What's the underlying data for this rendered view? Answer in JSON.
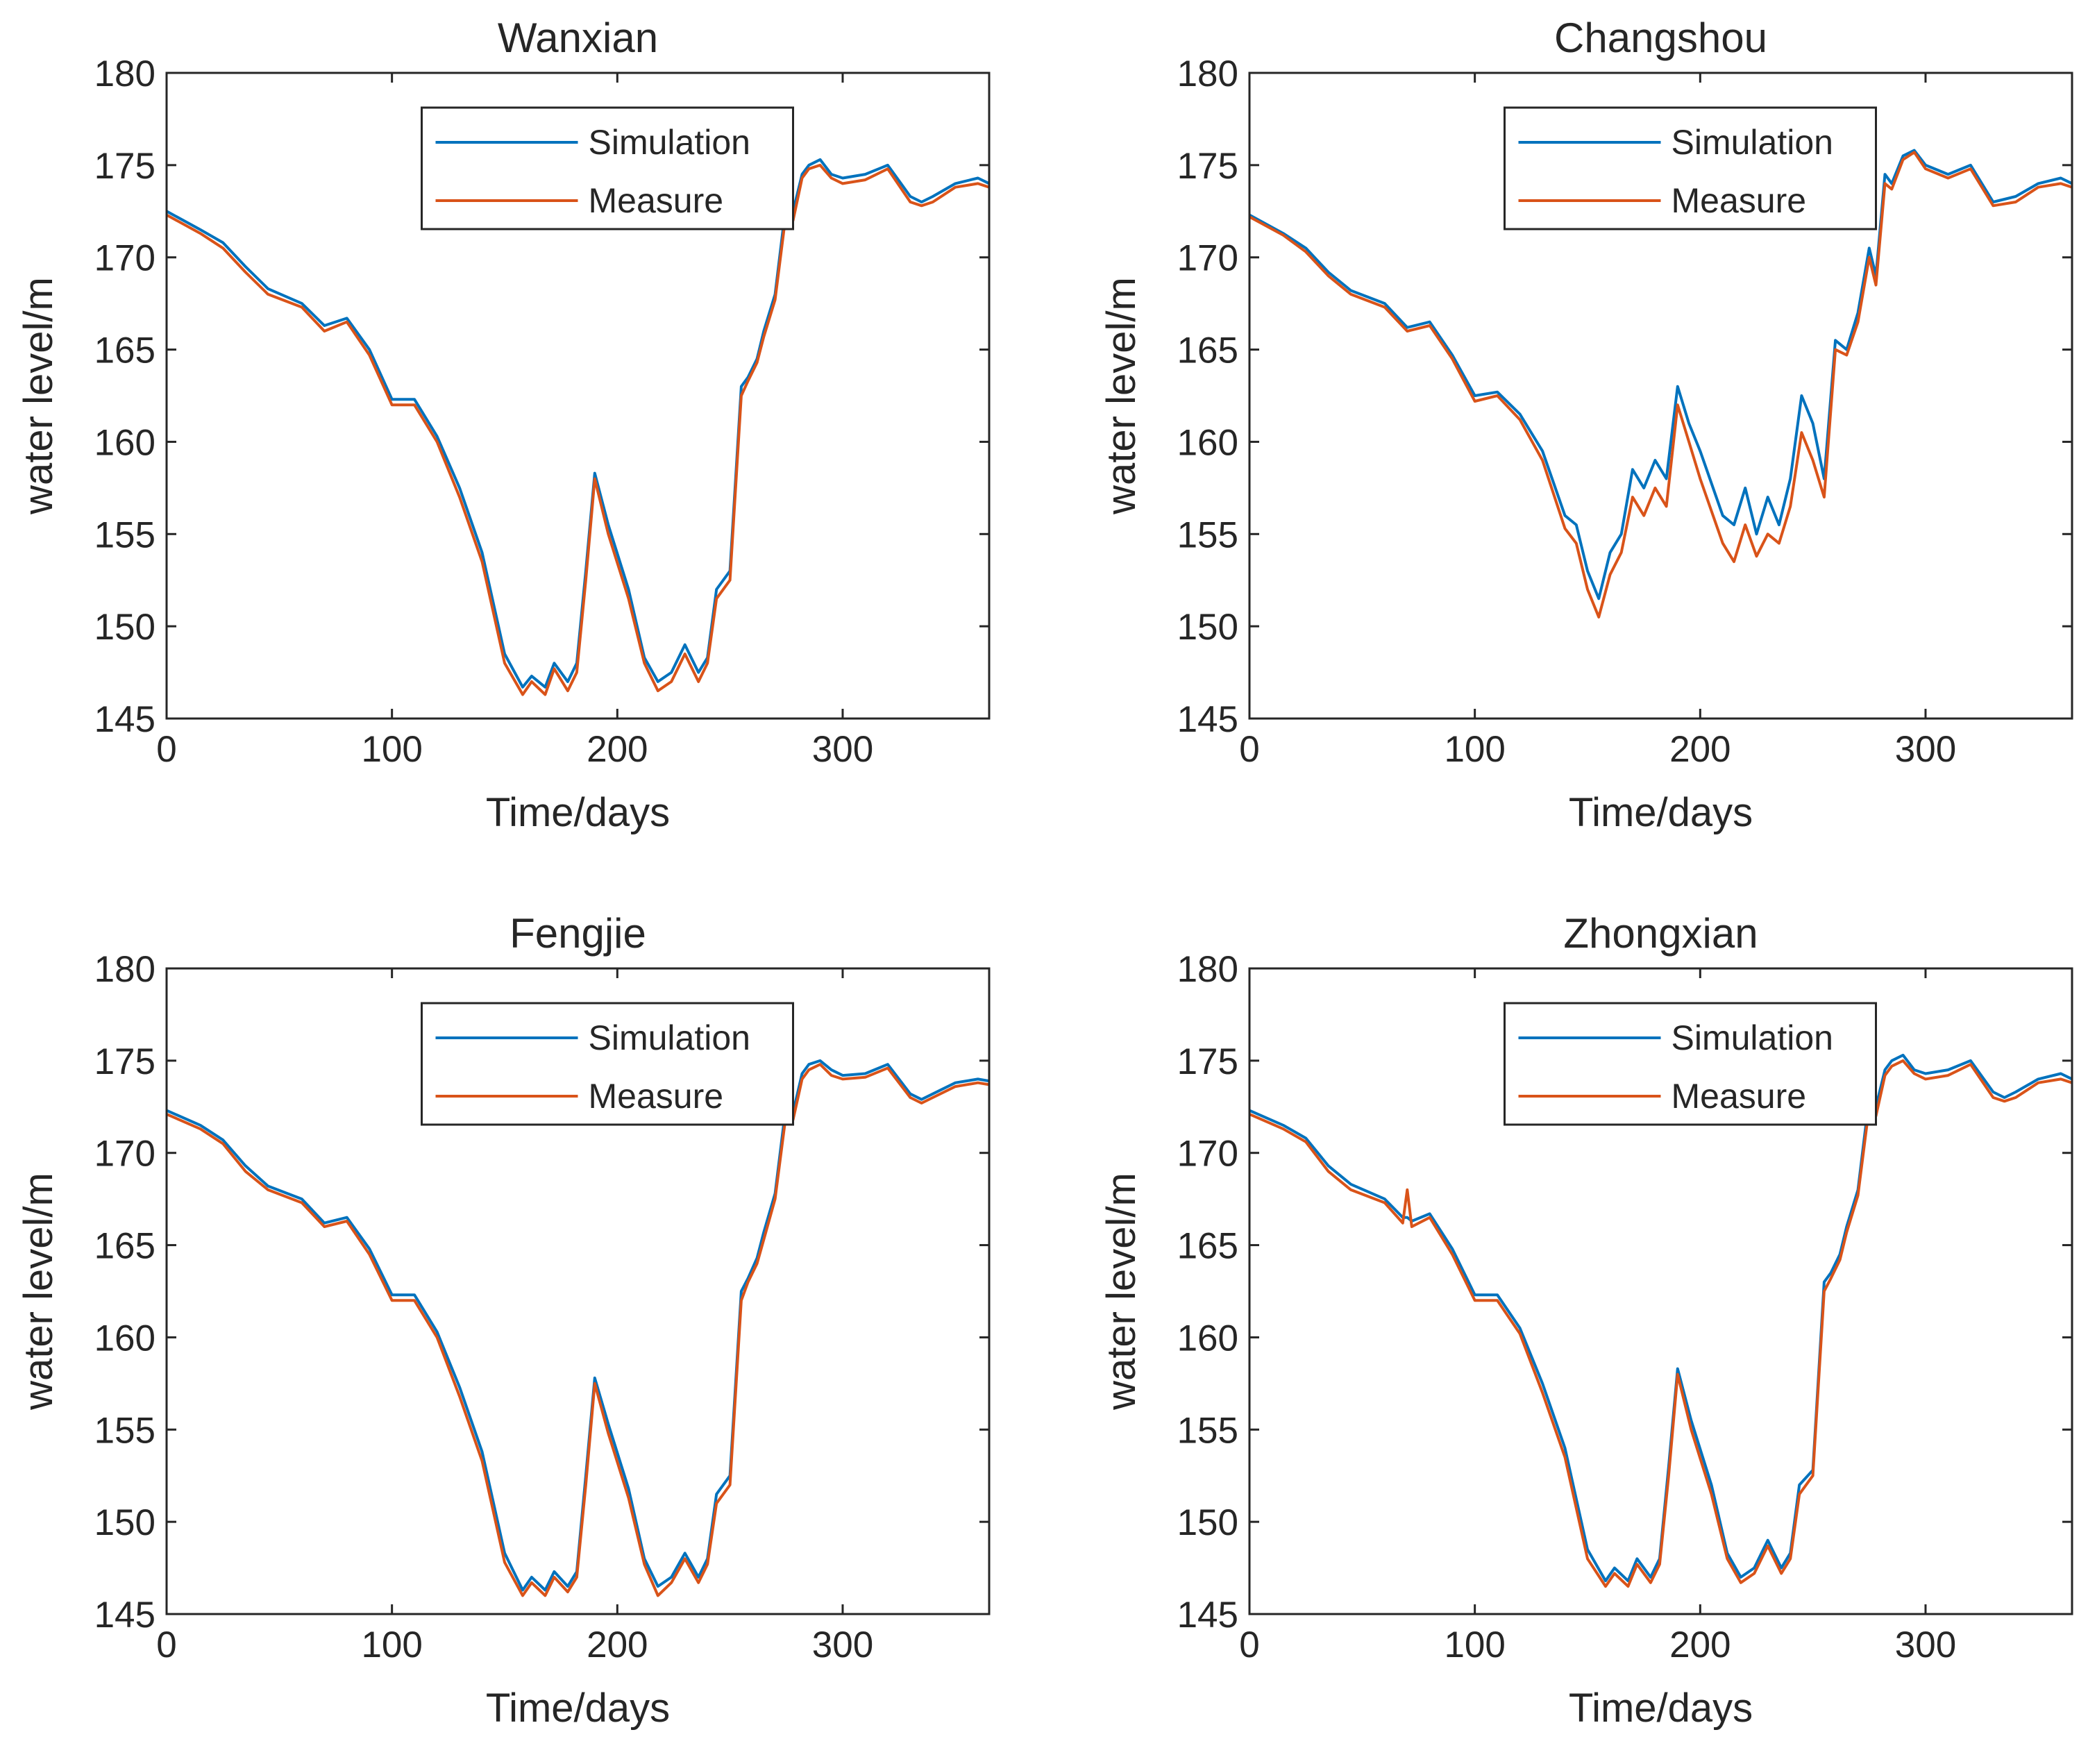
{
  "figure": {
    "colors": {
      "simulation": "#0072BD",
      "measure": "#D95319",
      "axis": "#262626",
      "background": "#ffffff"
    }
  },
  "chart_data": [
    {
      "type": "line",
      "title": "Wanxian",
      "xlabel": "Time/days",
      "ylabel": "water level/m",
      "xlim": [
        0,
        365
      ],
      "ylim": [
        145,
        180
      ],
      "xticks": [
        0,
        100,
        200,
        300
      ],
      "yticks": [
        145,
        150,
        155,
        160,
        165,
        170,
        175,
        180
      ],
      "legend": {
        "position": "top-center",
        "entries": [
          "Simulation",
          "Measure"
        ]
      },
      "series": [
        {
          "name": "Simulation",
          "color": "#0072BD",
          "x": [
            0,
            15,
            25,
            35,
            45,
            60,
            70,
            80,
            90,
            100,
            110,
            120,
            130,
            140,
            150,
            158,
            162,
            168,
            172,
            178,
            182,
            186,
            190,
            196,
            205,
            212,
            218,
            224,
            230,
            236,
            240,
            244,
            250,
            255,
            258,
            262,
            265,
            270,
            275,
            278,
            282,
            285,
            290,
            295,
            300,
            310,
            320,
            330,
            335,
            340,
            350,
            360,
            365
          ],
          "y": [
            172.5,
            171.5,
            170.8,
            169.5,
            168.3,
            167.5,
            166.3,
            166.7,
            165.0,
            162.3,
            162.3,
            160.3,
            157.5,
            154.0,
            148.5,
            146.7,
            147.3,
            146.7,
            148.0,
            147.0,
            148.0,
            153.0,
            158.3,
            155.5,
            152.0,
            148.3,
            147.0,
            147.5,
            149.0,
            147.5,
            148.3,
            152.0,
            153.0,
            163.0,
            163.5,
            164.5,
            166.0,
            168.0,
            173.0,
            172.5,
            174.5,
            175.0,
            175.3,
            174.5,
            174.3,
            174.5,
            175.0,
            173.3,
            173.0,
            173.3,
            174.0,
            174.3,
            174.0
          ]
        },
        {
          "name": "Measure",
          "color": "#D95319",
          "x": [
            0,
            15,
            25,
            35,
            45,
            60,
            70,
            80,
            90,
            100,
            110,
            120,
            130,
            140,
            150,
            158,
            162,
            168,
            172,
            178,
            182,
            186,
            190,
            196,
            205,
            212,
            218,
            224,
            230,
            236,
            240,
            244,
            250,
            255,
            258,
            262,
            265,
            270,
            275,
            278,
            282,
            285,
            290,
            295,
            300,
            310,
            320,
            330,
            335,
            340,
            350,
            360,
            365
          ],
          "y": [
            172.3,
            171.3,
            170.5,
            169.2,
            168.0,
            167.3,
            166.0,
            166.5,
            164.7,
            162.0,
            162.0,
            160.0,
            157.0,
            153.5,
            148.0,
            146.3,
            147.0,
            146.3,
            147.7,
            146.5,
            147.5,
            152.5,
            158.0,
            155.0,
            151.5,
            148.0,
            146.5,
            147.0,
            148.5,
            147.0,
            148.0,
            151.5,
            152.5,
            162.5,
            163.3,
            164.3,
            165.7,
            167.7,
            172.5,
            172.0,
            174.3,
            174.8,
            175.0,
            174.3,
            174.0,
            174.2,
            174.8,
            173.0,
            172.8,
            173.0,
            173.8,
            174.0,
            173.8
          ]
        }
      ]
    },
    {
      "type": "line",
      "title": "Changshou",
      "xlabel": "Time/days",
      "ylabel": "water level/m",
      "xlim": [
        0,
        365
      ],
      "ylim": [
        145,
        180
      ],
      "xticks": [
        0,
        100,
        200,
        300
      ],
      "yticks": [
        145,
        150,
        155,
        160,
        165,
        170,
        175,
        180
      ],
      "legend": {
        "position": "top-center",
        "entries": [
          "Simulation",
          "Measure"
        ]
      },
      "series": [
        {
          "name": "Simulation",
          "color": "#0072BD",
          "x": [
            0,
            15,
            25,
            35,
            45,
            60,
            70,
            80,
            90,
            100,
            110,
            120,
            130,
            140,
            145,
            150,
            155,
            160,
            165,
            170,
            175,
            180,
            185,
            190,
            195,
            200,
            210,
            215,
            220,
            225,
            230,
            235,
            240,
            245,
            250,
            255,
            260,
            265,
            270,
            275,
            278,
            282,
            285,
            290,
            295,
            300,
            310,
            320,
            330,
            340,
            350,
            360,
            365
          ],
          "y": [
            172.3,
            171.3,
            170.5,
            169.2,
            168.2,
            167.5,
            166.2,
            166.5,
            164.7,
            162.5,
            162.7,
            161.5,
            159.5,
            156.0,
            155.5,
            153.0,
            151.5,
            154.0,
            155.0,
            158.5,
            157.5,
            159.0,
            158.0,
            163.0,
            161.0,
            159.5,
            156.0,
            155.5,
            157.5,
            155.0,
            157.0,
            155.5,
            158.0,
            162.5,
            161.0,
            158.0,
            165.5,
            165.0,
            167.0,
            170.5,
            169.0,
            174.5,
            174.0,
            175.5,
            175.8,
            175.0,
            174.5,
            175.0,
            173.0,
            173.3,
            174.0,
            174.3,
            174.0
          ]
        },
        {
          "name": "Measure",
          "color": "#D95319",
          "x": [
            0,
            15,
            25,
            35,
            45,
            60,
            70,
            80,
            90,
            100,
            110,
            120,
            130,
            140,
            145,
            150,
            155,
            160,
            165,
            170,
            175,
            180,
            185,
            190,
            195,
            200,
            210,
            215,
            220,
            225,
            230,
            235,
            240,
            245,
            250,
            255,
            260,
            265,
            270,
            275,
            278,
            282,
            285,
            290,
            295,
            300,
            310,
            320,
            330,
            340,
            350,
            360,
            365
          ],
          "y": [
            172.2,
            171.2,
            170.3,
            169.0,
            168.0,
            167.3,
            166.0,
            166.3,
            164.5,
            162.2,
            162.5,
            161.2,
            159.0,
            155.3,
            154.5,
            152.0,
            150.5,
            152.8,
            154.0,
            157.0,
            156.0,
            157.5,
            156.5,
            162.0,
            160.0,
            158.0,
            154.5,
            153.5,
            155.5,
            153.8,
            155.0,
            154.5,
            156.5,
            160.5,
            159.0,
            157.0,
            165.0,
            164.7,
            166.5,
            170.0,
            168.5,
            174.0,
            173.7,
            175.3,
            175.7,
            174.8,
            174.3,
            174.8,
            172.8,
            173.0,
            173.8,
            174.0,
            173.8
          ]
        }
      ]
    },
    {
      "type": "line",
      "title": "Fengjie",
      "xlabel": "Time/days",
      "ylabel": "water level/m",
      "xlim": [
        0,
        365
      ],
      "ylim": [
        145,
        180
      ],
      "xticks": [
        0,
        100,
        200,
        300
      ],
      "yticks": [
        145,
        150,
        155,
        160,
        165,
        170,
        175,
        180
      ],
      "legend": {
        "position": "top-center",
        "entries": [
          "Simulation",
          "Measure"
        ]
      },
      "series": [
        {
          "name": "Simulation",
          "color": "#0072BD",
          "x": [
            0,
            15,
            25,
            35,
            45,
            60,
            70,
            80,
            90,
            100,
            110,
            120,
            130,
            140,
            150,
            158,
            162,
            168,
            172,
            178,
            182,
            186,
            190,
            196,
            205,
            212,
            218,
            224,
            230,
            236,
            240,
            244,
            250,
            255,
            258,
            262,
            265,
            270,
            275,
            278,
            282,
            285,
            290,
            295,
            300,
            310,
            320,
            330,
            335,
            340,
            350,
            360,
            365
          ],
          "y": [
            172.3,
            171.5,
            170.7,
            169.3,
            168.2,
            167.5,
            166.2,
            166.5,
            164.8,
            162.3,
            162.3,
            160.3,
            157.3,
            153.8,
            148.3,
            146.3,
            147.0,
            146.3,
            147.3,
            146.5,
            147.3,
            152.5,
            157.8,
            155.3,
            151.8,
            148.0,
            146.5,
            147.0,
            148.3,
            147.0,
            148.0,
            151.5,
            152.5,
            162.5,
            163.2,
            164.3,
            165.7,
            167.8,
            172.7,
            172.2,
            174.3,
            174.8,
            175.0,
            174.5,
            174.2,
            174.3,
            174.8,
            173.2,
            172.9,
            173.2,
            173.8,
            174.0,
            173.9
          ]
        },
        {
          "name": "Measure",
          "color": "#D95319",
          "x": [
            0,
            15,
            25,
            35,
            45,
            60,
            70,
            80,
            90,
            100,
            110,
            120,
            130,
            140,
            150,
            158,
            162,
            168,
            172,
            178,
            182,
            186,
            190,
            196,
            205,
            212,
            218,
            224,
            230,
            236,
            240,
            244,
            250,
            255,
            258,
            262,
            265,
            270,
            275,
            278,
            282,
            285,
            290,
            295,
            300,
            310,
            320,
            330,
            335,
            340,
            350,
            360,
            365
          ],
          "y": [
            172.1,
            171.3,
            170.5,
            169.0,
            168.0,
            167.3,
            166.0,
            166.3,
            164.5,
            162.0,
            162.0,
            160.0,
            156.8,
            153.3,
            147.8,
            146.0,
            146.7,
            146.0,
            147.0,
            146.2,
            147.0,
            152.0,
            157.5,
            154.8,
            151.3,
            147.7,
            146.0,
            146.7,
            148.0,
            146.7,
            147.7,
            151.0,
            152.0,
            162.0,
            163.0,
            164.0,
            165.3,
            167.5,
            172.2,
            171.8,
            174.0,
            174.5,
            174.8,
            174.2,
            174.0,
            174.1,
            174.6,
            173.0,
            172.7,
            173.0,
            173.6,
            173.8,
            173.7
          ]
        }
      ]
    },
    {
      "type": "line",
      "title": "Zhongxian",
      "xlabel": "Time/days",
      "ylabel": "water level/m",
      "xlim": [
        0,
        365
      ],
      "ylim": [
        145,
        180
      ],
      "xticks": [
        0,
        100,
        200,
        300
      ],
      "yticks": [
        145,
        150,
        155,
        160,
        165,
        170,
        175,
        180
      ],
      "legend": {
        "position": "top-center",
        "entries": [
          "Simulation",
          "Measure"
        ]
      },
      "series": [
        {
          "name": "Simulation",
          "color": "#0072BD",
          "x": [
            0,
            15,
            25,
            35,
            45,
            60,
            68,
            70,
            72,
            80,
            90,
            100,
            110,
            120,
            130,
            140,
            150,
            158,
            162,
            168,
            172,
            178,
            182,
            186,
            190,
            196,
            205,
            212,
            218,
            224,
            230,
            236,
            240,
            244,
            250,
            255,
            258,
            262,
            265,
            270,
            275,
            278,
            282,
            285,
            290,
            295,
            300,
            310,
            320,
            330,
            335,
            340,
            350,
            360,
            365
          ],
          "y": [
            172.3,
            171.5,
            170.8,
            169.3,
            168.3,
            167.5,
            166.5,
            166.5,
            166.3,
            166.7,
            164.8,
            162.3,
            162.3,
            160.5,
            157.5,
            154.0,
            148.5,
            146.8,
            147.5,
            146.8,
            148.0,
            147.0,
            148.0,
            153.0,
            158.3,
            155.5,
            152.0,
            148.3,
            147.0,
            147.5,
            149.0,
            147.5,
            148.3,
            152.0,
            152.8,
            163.0,
            163.5,
            164.5,
            166.0,
            168.0,
            173.0,
            172.5,
            174.5,
            175.0,
            175.3,
            174.5,
            174.3,
            174.5,
            175.0,
            173.3,
            173.0,
            173.3,
            174.0,
            174.3,
            174.0
          ]
        },
        {
          "name": "Measure",
          "color": "#D95319",
          "x": [
            0,
            15,
            25,
            35,
            45,
            60,
            68,
            70,
            72,
            80,
            90,
            100,
            110,
            120,
            130,
            140,
            150,
            158,
            162,
            168,
            172,
            178,
            182,
            186,
            190,
            196,
            205,
            212,
            218,
            224,
            230,
            236,
            240,
            244,
            250,
            255,
            258,
            262,
            265,
            270,
            275,
            278,
            282,
            285,
            290,
            295,
            300,
            310,
            320,
            330,
            335,
            340,
            350,
            360,
            365
          ],
          "y": [
            172.1,
            171.3,
            170.6,
            169.0,
            168.0,
            167.3,
            166.2,
            168.0,
            166.0,
            166.5,
            164.5,
            162.0,
            162.0,
            160.2,
            157.0,
            153.5,
            148.0,
            146.5,
            147.2,
            146.5,
            147.7,
            146.7,
            147.7,
            152.5,
            158.0,
            155.0,
            151.5,
            148.0,
            146.7,
            147.2,
            148.7,
            147.2,
            148.0,
            151.5,
            152.5,
            162.5,
            163.2,
            164.2,
            165.7,
            167.7,
            172.5,
            172.0,
            174.2,
            174.7,
            175.0,
            174.3,
            174.0,
            174.2,
            174.8,
            173.0,
            172.8,
            173.0,
            173.8,
            174.0,
            173.8
          ]
        }
      ]
    }
  ]
}
